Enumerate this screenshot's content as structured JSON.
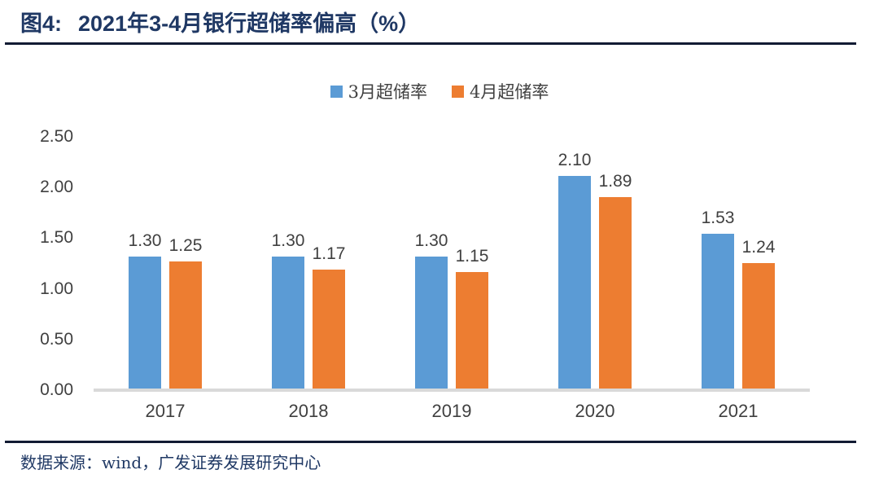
{
  "header": {
    "figure_label": "图4:",
    "title": "2021年3-4月银行超储率偏高（%）"
  },
  "chart_data": {
    "type": "bar",
    "title": "2021年3-4月银行超储率偏高（%）",
    "categories": [
      "2017",
      "2018",
      "2019",
      "2020",
      "2021"
    ],
    "series": [
      {
        "name": "3月超储率",
        "color": "#5B9BD5",
        "values": [
          1.3,
          1.3,
          1.3,
          2.1,
          1.53
        ]
      },
      {
        "name": "4月超储率",
        "color": "#ED7D31",
        "values": [
          1.25,
          1.17,
          1.15,
          1.89,
          1.24
        ]
      }
    ],
    "xlabel": "",
    "ylabel": "",
    "ylim": [
      0,
      2.5
    ],
    "ytick_step": 0.5,
    "ytick_labels": [
      "0.00",
      "0.50",
      "1.00",
      "1.50",
      "2.00",
      "2.50"
    ],
    "grid": false,
    "legend_position": "top",
    "value_labels_shown": true,
    "value_label_decimals": 2
  },
  "footer": {
    "source": "数据来源：wind，广发证券发展研究中心"
  },
  "colors": {
    "series_march": "#5B9BD5",
    "series_april": "#ED7D31",
    "title_text": "#1F3864",
    "axis_text": "#404040",
    "baseline": "#D9D9D9",
    "divider": "#121B33"
  }
}
